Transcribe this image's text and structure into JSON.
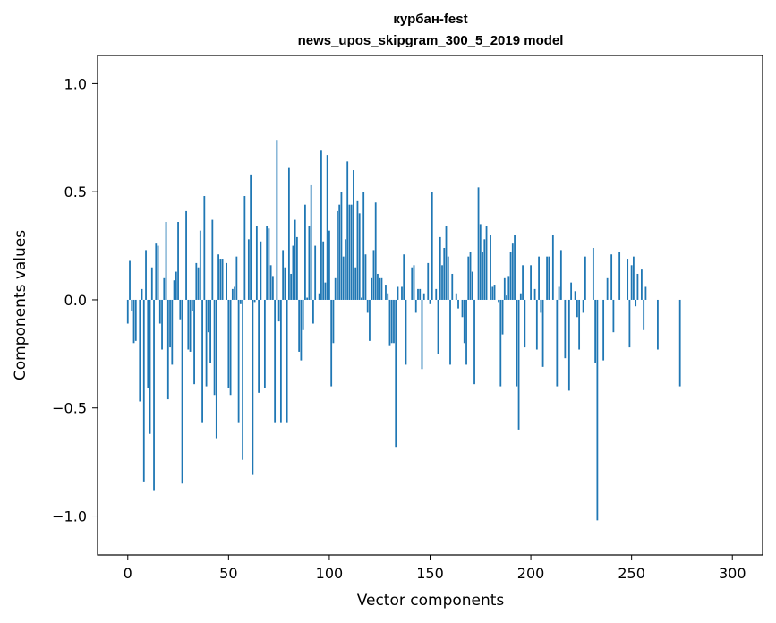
{
  "chart_data": {
    "type": "bar",
    "title_lines": [
      "курбан-fest",
      "news_upos_skipgram_300_5_2019 model"
    ],
    "xlabel": "Vector components",
    "ylabel": "Components values",
    "xlim": [
      -15,
      315
    ],
    "ylim": [
      -1.18,
      1.13
    ],
    "xticks": [
      0,
      50,
      100,
      150,
      200,
      250,
      300
    ],
    "yticks": [
      -1.0,
      -0.5,
      0.0,
      0.5,
      1.0
    ],
    "xtick_labels": [
      "0",
      "50",
      "100",
      "150",
      "200",
      "250",
      "300"
    ],
    "ytick_labels": [
      "−1.0",
      "−0.5",
      "0.0",
      "0.5",
      "1.0"
    ],
    "bar_color": "#1f77b4",
    "grid": false,
    "values": [
      -0.11,
      0.18,
      -0.05,
      -0.2,
      -0.19,
      0.0,
      -0.47,
      0.05,
      -0.84,
      0.23,
      -0.41,
      -0.62,
      0.15,
      -0.88,
      0.26,
      0.25,
      -0.11,
      -0.23,
      0.1,
      0.36,
      -0.46,
      -0.22,
      -0.3,
      0.09,
      0.13,
      0.36,
      -0.09,
      -0.85,
      0.0,
      0.41,
      -0.23,
      -0.24,
      -0.05,
      -0.39,
      0.17,
      0.15,
      0.32,
      -0.57,
      0.48,
      -0.4,
      -0.15,
      -0.29,
      0.37,
      -0.44,
      -0.64,
      0.21,
      0.19,
      0.19,
      0.0,
      0.17,
      -0.41,
      -0.44,
      0.05,
      0.06,
      0.2,
      -0.57,
      -0.02,
      -0.74,
      0.48,
      0.0,
      0.28,
      0.58,
      -0.81,
      -0.01,
      0.34,
      -0.43,
      0.27,
      0.0,
      -0.41,
      0.34,
      0.33,
      0.16,
      0.11,
      -0.57,
      0.74,
      -0.1,
      -0.57,
      0.23,
      0.15,
      -0.57,
      0.61,
      0.12,
      0.25,
      0.37,
      0.29,
      -0.24,
      -0.28,
      -0.14,
      0.44,
      0.01,
      0.34,
      0.53,
      -0.11,
      0.25,
      0.0,
      0.03,
      0.69,
      0.27,
      0.08,
      0.67,
      0.32,
      -0.4,
      -0.2,
      0.1,
      0.41,
      0.44,
      0.5,
      0.2,
      0.28,
      0.64,
      0.44,
      0.44,
      0.6,
      0.15,
      0.46,
      0.4,
      0.01,
      0.5,
      0.21,
      -0.06,
      -0.19,
      0.1,
      0.23,
      0.45,
      0.12,
      0.1,
      0.1,
      0.0,
      0.07,
      0.03,
      -0.21,
      -0.2,
      -0.2,
      -0.68,
      0.06,
      0.0,
      0.06,
      0.21,
      -0.3,
      0.0,
      0.0,
      0.15,
      0.16,
      -0.06,
      0.05,
      0.05,
      -0.32,
      0.03,
      0.0,
      0.17,
      -0.02,
      0.5,
      0.0,
      0.05,
      -0.25,
      0.29,
      0.16,
      0.24,
      0.34,
      0.2,
      -0.3,
      0.12,
      0.0,
      0.03,
      -0.04,
      0.0,
      -0.08,
      -0.2,
      -0.3,
      0.2,
      0.22,
      0.13,
      -0.39,
      0.0,
      0.52,
      0.35,
      0.22,
      0.28,
      0.34,
      0.0,
      0.3,
      0.06,
      0.07,
      0.0,
      -0.01,
      -0.4,
      -0.16,
      0.1,
      0.02,
      0.11,
      0.22,
      0.26,
      0.3,
      -0.4,
      -0.6,
      0.03,
      0.16,
      -0.22,
      0.0,
      0.0,
      0.16,
      0.0,
      0.05,
      -0.23,
      0.2,
      -0.06,
      -0.31,
      0.0,
      0.2,
      0.2,
      0.0,
      0.3,
      0.0,
      -0.4,
      0.06,
      0.23,
      0.0,
      -0.27,
      0.0,
      -0.42,
      0.08,
      0.0,
      0.04,
      -0.08,
      -0.23,
      0.0,
      -0.06,
      0.2,
      0.0,
      0.0,
      0.0,
      0.24,
      -0.29,
      -1.02,
      0.0,
      0.0,
      -0.28,
      0.0,
      0.1,
      0.0,
      0.21,
      -0.15,
      0.0,
      0.0,
      0.22,
      0.0,
      0.0,
      0.0,
      0.19,
      -0.22,
      0.16,
      0.2,
      -0.03,
      0.12,
      0.0,
      0.14,
      -0.14,
      0.06,
      0.0,
      0.0,
      0.0,
      0.0,
      0.0,
      -0.23,
      0.0,
      0.0,
      0.0,
      0.0,
      0.0,
      0.0,
      0.0,
      0.0,
      0.0,
      0.0,
      -0.4,
      0.0,
      0.0,
      0.0,
      0.0,
      0.0,
      0.0,
      0.0,
      0.0,
      0.0,
      0.0,
      0.0,
      0.0,
      0.0,
      0.0,
      0.0,
      0.0,
      0.0,
      0.0,
      0.0,
      0.0,
      0.0,
      0.0,
      0.0,
      0.0,
      0.0,
      0.0,
      0.0,
      0.0,
      0.0,
      0.0,
      0.0,
      0.0,
      0.0,
      0.0,
      0.0,
      0.0,
      0.0
    ]
  }
}
